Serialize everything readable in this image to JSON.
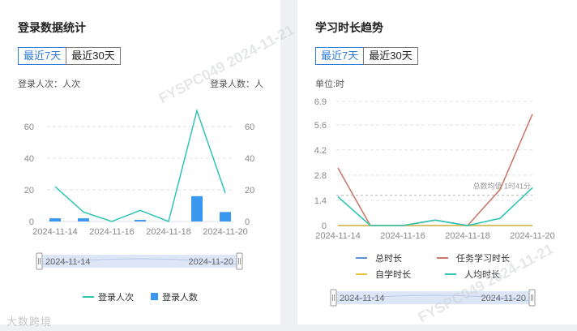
{
  "login_panel": {
    "title": "登录数据统计",
    "tabs": [
      "最近7天",
      "最近30天"
    ],
    "active_tab": 0,
    "y_left_label": "登录人次：人次",
    "y_right_label": "登录人数：人",
    "slider_start": "2024-11-14",
    "slider_end": "2024-11-20",
    "legend": [
      "登录人次",
      "登录人数"
    ]
  },
  "study_panel": {
    "title": "学习时长趋势",
    "tabs": [
      "最近7天",
      "最近30天"
    ],
    "active_tab": 0,
    "unit_label": "单位:时",
    "markline_label": "总数均值 1时41分",
    "slider_start": "2024-11-14",
    "slider_end": "2024-11-20",
    "legend": [
      "总时长",
      "任务学习时长",
      "自学时长",
      "人均时长"
    ]
  },
  "watermark": "FYSPC049  2024-11-21",
  "logo_text": "大数跨境",
  "colors": {
    "accent": "#2f7bd6",
    "cyan": "#2ec4b6",
    "blue_bar": "#3a97ef",
    "red": "#c97b6b",
    "yellow": "#e8c13a",
    "blue_line": "#5b8fd6",
    "slider_fill": "#dce6f7"
  },
  "chart_data": [
    {
      "type": "bar",
      "x": [
        "2024-11-14",
        "2024-11-15",
        "2024-11-16",
        "2024-11-17",
        "2024-11-18",
        "2024-11-19",
        "2024-11-20"
      ],
      "x_tick_labels": [
        "2024-11-14",
        "2024-11-16",
        "2024-11-18",
        "2024-11-20"
      ],
      "y_ticks": [
        0,
        20,
        40,
        60
      ],
      "y2_ticks": [
        0,
        20,
        40,
        60
      ],
      "ylim": [
        0,
        80
      ],
      "y2lim": [
        0,
        80
      ],
      "grid": true,
      "legend_position": "bottom",
      "series": [
        {
          "name": "登录人次",
          "kind": "line",
          "axis": "left",
          "color": "#2ec4b6",
          "values": [
            22,
            6,
            0,
            7,
            0,
            70,
            18
          ]
        },
        {
          "name": "登录人数",
          "kind": "bar",
          "axis": "right",
          "color": "#3a97ef",
          "values": [
            2,
            2,
            0,
            1,
            0,
            16,
            6
          ]
        }
      ]
    },
    {
      "type": "line",
      "x": [
        "2024-11-14",
        "2024-11-15",
        "2024-11-16",
        "2024-11-17",
        "2024-11-18",
        "2024-11-19",
        "2024-11-20"
      ],
      "x_tick_labels": [
        "2024-11-14",
        "2024-11-16",
        "2024-11-18",
        "2024-11-20"
      ],
      "y_ticks": [
        0,
        1.4,
        2.8,
        4.2,
        5.6,
        6.9
      ],
      "y_tick_labels": [
        "0",
        "1.4",
        "2.8",
        "4.2",
        "5.6",
        "6.9"
      ],
      "ylim": [
        0,
        6.9
      ],
      "grid": true,
      "legend_position": "bottom",
      "mark_line_value": 1.68,
      "series": [
        {
          "name": "总时长",
          "color": "#5b8fd6",
          "values": [
            0,
            0,
            0,
            0,
            0,
            0,
            0
          ]
        },
        {
          "name": "任务学习时长",
          "color": "#c97b6b",
          "values": [
            3.2,
            0,
            0,
            0.3,
            0,
            2.0,
            6.2
          ]
        },
        {
          "name": "自学时长",
          "color": "#e8c13a",
          "values": [
            0,
            0,
            0,
            0,
            0,
            0,
            0
          ]
        },
        {
          "name": "人均时长",
          "color": "#2ec4b6",
          "values": [
            1.6,
            0,
            0,
            0.3,
            0,
            0.4,
            2.1
          ]
        }
      ]
    }
  ]
}
